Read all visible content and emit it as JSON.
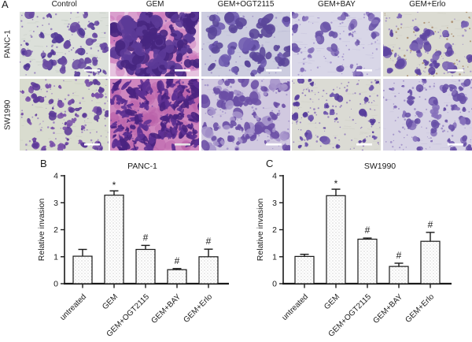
{
  "figure": {
    "panel_a_letter": "A",
    "panel_b_letter": "B",
    "panel_c_letter": "C"
  },
  "micrographs": {
    "columns": [
      "Control",
      "GEM",
      "GEM+OGT2115",
      "GEM+BAY",
      "GEM+Erlo"
    ],
    "rows": [
      "PANC-1",
      "SW1990"
    ],
    "stain_note_colors": {
      "crystal_violet": "#5c3a97",
      "scale_bar": "#ffffff"
    },
    "tiles": [
      {
        "id": "panc1-control",
        "row": "PANC-1",
        "col": "Control",
        "bg": "#dce0da",
        "streaks": 55,
        "streak_color": "#c6cdc6",
        "halos": 0,
        "halo_color": "",
        "halo_min": 0,
        "halo_max": 0,
        "blobs": 36,
        "blob_min": 3,
        "blob_max": 8,
        "blob_color": "#6a4ba2",
        "blob_color2": "#503795",
        "dots": 70,
        "dot_color": "#8f77b8",
        "dot_color2": "",
        "elongate": false,
        "scale_bar": true,
        "scale_bar_color": "#ffffff"
      },
      {
        "id": "panc1-gem",
        "row": "PANC-1",
        "col": "GEM",
        "bg": "#e6c3df",
        "streaks": 0,
        "streak_color": "",
        "halos": 80,
        "halo_color": "#c972b8",
        "halo_min": 5,
        "halo_max": 13,
        "blobs": 95,
        "blob_min": 4,
        "blob_max": 11,
        "blob_color": "#5c3a97",
        "blob_color2": "#47267f",
        "dots": 30,
        "dot_color": "#7a4fa8",
        "dot_color2": "",
        "elongate": false,
        "scale_bar": true,
        "scale_bar_color": "#ffffff"
      },
      {
        "id": "panc1-ogt2115",
        "row": "PANC-1",
        "col": "GEM+OGT2115",
        "bg": "#ccccdf",
        "streaks": 45,
        "streak_color": "#bdbdd6",
        "halos": 0,
        "halo_color": "",
        "halo_min": 0,
        "halo_max": 0,
        "blobs": 38,
        "blob_min": 4,
        "blob_max": 10,
        "blob_color": "#5a4699",
        "blob_color2": "#6f5bb0",
        "dots": 50,
        "dot_color": "#9b8cc5",
        "dot_color2": "",
        "elongate": false,
        "scale_bar": true,
        "scale_bar_color": "#ffffff"
      },
      {
        "id": "panc1-bay",
        "row": "PANC-1",
        "col": "GEM+BAY",
        "bg": "#d8d6e7",
        "streaks": 45,
        "streak_color": "#c9c6de",
        "halos": 0,
        "halo_color": "",
        "halo_min": 0,
        "halo_max": 0,
        "blobs": 26,
        "blob_min": 3,
        "blob_max": 8,
        "blob_color": "#6b55a9",
        "blob_color2": "#8672bb",
        "dots": 60,
        "dot_color": "#a292cc",
        "dot_color2": "",
        "elongate": false,
        "scale_bar": true,
        "scale_bar_color": "#ffffff"
      },
      {
        "id": "panc1-erlo",
        "row": "PANC-1",
        "col": "GEM+Erlo",
        "bg": "#dbdbd2",
        "streaks": 35,
        "streak_color": "#cfcfc4",
        "halos": 0,
        "halo_color": "",
        "halo_min": 0,
        "halo_max": 0,
        "blobs": 30,
        "blob_min": 3,
        "blob_max": 8,
        "blob_color": "#5f46a1",
        "blob_color2": "#7a63b4",
        "dots": 120,
        "dot_color": "#a8896a",
        "dot_color2": "#9d8bc4",
        "elongate": false,
        "scale_bar": true,
        "scale_bar_color": "#ffffff"
      },
      {
        "id": "sw1990-control",
        "row": "SW1990",
        "col": "Control",
        "bg": "#d9dccf",
        "streaks": 45,
        "streak_color": "#cbcfc0",
        "halos": 0,
        "halo_color": "",
        "halo_min": 0,
        "halo_max": 0,
        "blobs": 55,
        "blob_min": 2,
        "blob_max": 6,
        "blob_color": "#7950a8",
        "blob_color2": "#5c3a97",
        "dots": 90,
        "dot_color": "#9a7fc0",
        "dot_color2": "",
        "elongate": false,
        "scale_bar": true,
        "scale_bar_color": "#ffffff"
      },
      {
        "id": "sw1990-gem",
        "row": "SW1990",
        "col": "GEM",
        "bg": "#cf86bf",
        "streaks": 0,
        "streak_color": "",
        "halos": 60,
        "halo_color": "#b85fa8",
        "halo_min": 5,
        "halo_max": 12,
        "blobs": 135,
        "blob_min": 3,
        "blob_max": 9,
        "blob_color": "#5e3093",
        "blob_color2": "#4a2280",
        "dots": 40,
        "dot_color": "#7a4fa8",
        "dot_color2": "",
        "elongate": true,
        "scale_bar": true,
        "scale_bar_color": "#e9e9e9"
      },
      {
        "id": "sw1990-ogt2115",
        "row": "SW1990",
        "col": "GEM+OGT2115",
        "bg": "#d1c9e0",
        "streaks": 30,
        "streak_color": "#c4bcd8",
        "halos": 0,
        "halo_color": "",
        "halo_min": 0,
        "halo_max": 0,
        "blobs": 70,
        "blob_min": 3,
        "blob_max": 9,
        "blob_color": "#6b4fa5",
        "blob_color2": "#a694cb",
        "dots": 70,
        "dot_color": "#a08fc9",
        "dot_color2": "",
        "elongate": false,
        "scale_bar": true,
        "scale_bar_color": "#ffffff"
      },
      {
        "id": "sw1990-bay",
        "row": "SW1990",
        "col": "GEM+BAY",
        "bg": "#dbdbd4",
        "streaks": 45,
        "streak_color": "#cfcfc6",
        "halos": 0,
        "halo_color": "",
        "halo_min": 0,
        "halo_max": 0,
        "blobs": 30,
        "blob_min": 2,
        "blob_max": 7,
        "blob_color": "#573c9b",
        "blob_color2": "#6f58ad",
        "dots": 130,
        "dot_color": "#8f78bb",
        "dot_color2": "",
        "elongate": false,
        "scale_bar": true,
        "scale_bar_color": "#ffffff"
      },
      {
        "id": "sw1990-erlo",
        "row": "SW1990",
        "col": "GEM+Erlo",
        "bg": "#d7d3e5",
        "streaks": 30,
        "streak_color": "#cac5dd",
        "halos": 0,
        "halo_color": "",
        "halo_min": 0,
        "halo_max": 0,
        "blobs": 48,
        "blob_min": 2,
        "blob_max": 7,
        "blob_color": "#6850a6",
        "blob_color2": "#8671bb",
        "dots": 110,
        "dot_color": "#9b89c6",
        "dot_color2": "",
        "elongate": false,
        "scale_bar": true,
        "scale_bar_color": "#ffffff"
      }
    ]
  },
  "chart_data": [
    {
      "type": "bar",
      "panel": "B",
      "title": "PANC-1",
      "xlabel": "",
      "ylabel": "Relative invasion",
      "ylim": [
        0,
        4
      ],
      "yticks": [
        0,
        1,
        2,
        3,
        4
      ],
      "grid": false,
      "legend": "none",
      "categories": [
        "untreated",
        "GEM",
        "GEM+OGT2115",
        "GEM+BAY",
        "GEM+Erlo"
      ],
      "values": [
        1.02,
        3.28,
        1.27,
        0.52,
        1.0
      ],
      "errors": [
        0.25,
        0.16,
        0.15,
        0.04,
        0.28
      ],
      "annotations": [
        "",
        "*",
        "#",
        "#",
        "#"
      ],
      "bar_fill": "stipple-dots",
      "bar_edge_color": "#1a1a1a"
    },
    {
      "type": "bar",
      "panel": "C",
      "title": "SW1990",
      "xlabel": "",
      "ylabel": "Relative invasion",
      "ylim": [
        0,
        4
      ],
      "yticks": [
        0,
        1,
        2,
        3,
        4
      ],
      "grid": false,
      "legend": "none",
      "categories": [
        "untreated",
        "GEM",
        "GEM+OGT2115",
        "GEM+BAY",
        "GEM+Erlo"
      ],
      "values": [
        1.01,
        3.26,
        1.65,
        0.64,
        1.57
      ],
      "errors": [
        0.08,
        0.24,
        0.04,
        0.12,
        0.33
      ],
      "annotations": [
        "",
        "*",
        "#",
        "#",
        "#"
      ],
      "bar_fill": "stipple-dots",
      "bar_edge_color": "#1a1a1a"
    }
  ]
}
